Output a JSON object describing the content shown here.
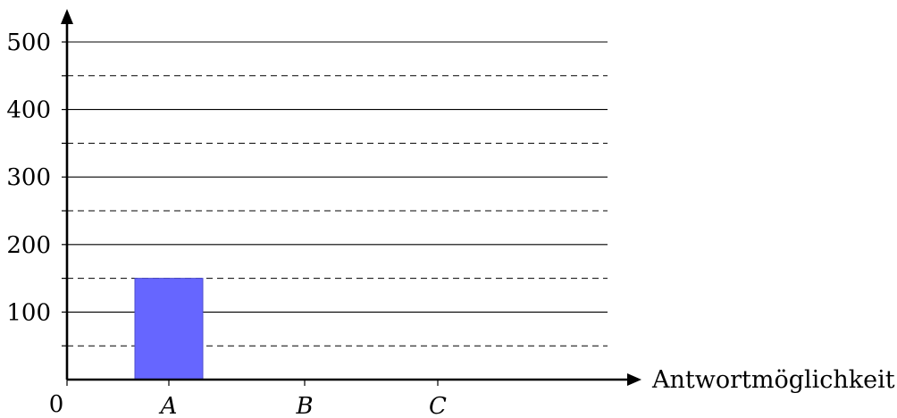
{
  "chart_data": {
    "type": "bar",
    "categories": [
      "A",
      "B",
      "C"
    ],
    "values": [
      150,
      0,
      0
    ],
    "title": "",
    "xlabel": "Antwortmöglichkeit",
    "ylabel": "",
    "ylim": [
      0,
      500
    ],
    "y_ticks": [
      100,
      200,
      300,
      400,
      500
    ],
    "y_minor_ticks": [
      50,
      150,
      250,
      350,
      450
    ],
    "origin_label": "0",
    "grid": true,
    "bar_color": "#6666ff",
    "bar_edge_color": "#4d4dcc",
    "axis_color": "#000000"
  }
}
